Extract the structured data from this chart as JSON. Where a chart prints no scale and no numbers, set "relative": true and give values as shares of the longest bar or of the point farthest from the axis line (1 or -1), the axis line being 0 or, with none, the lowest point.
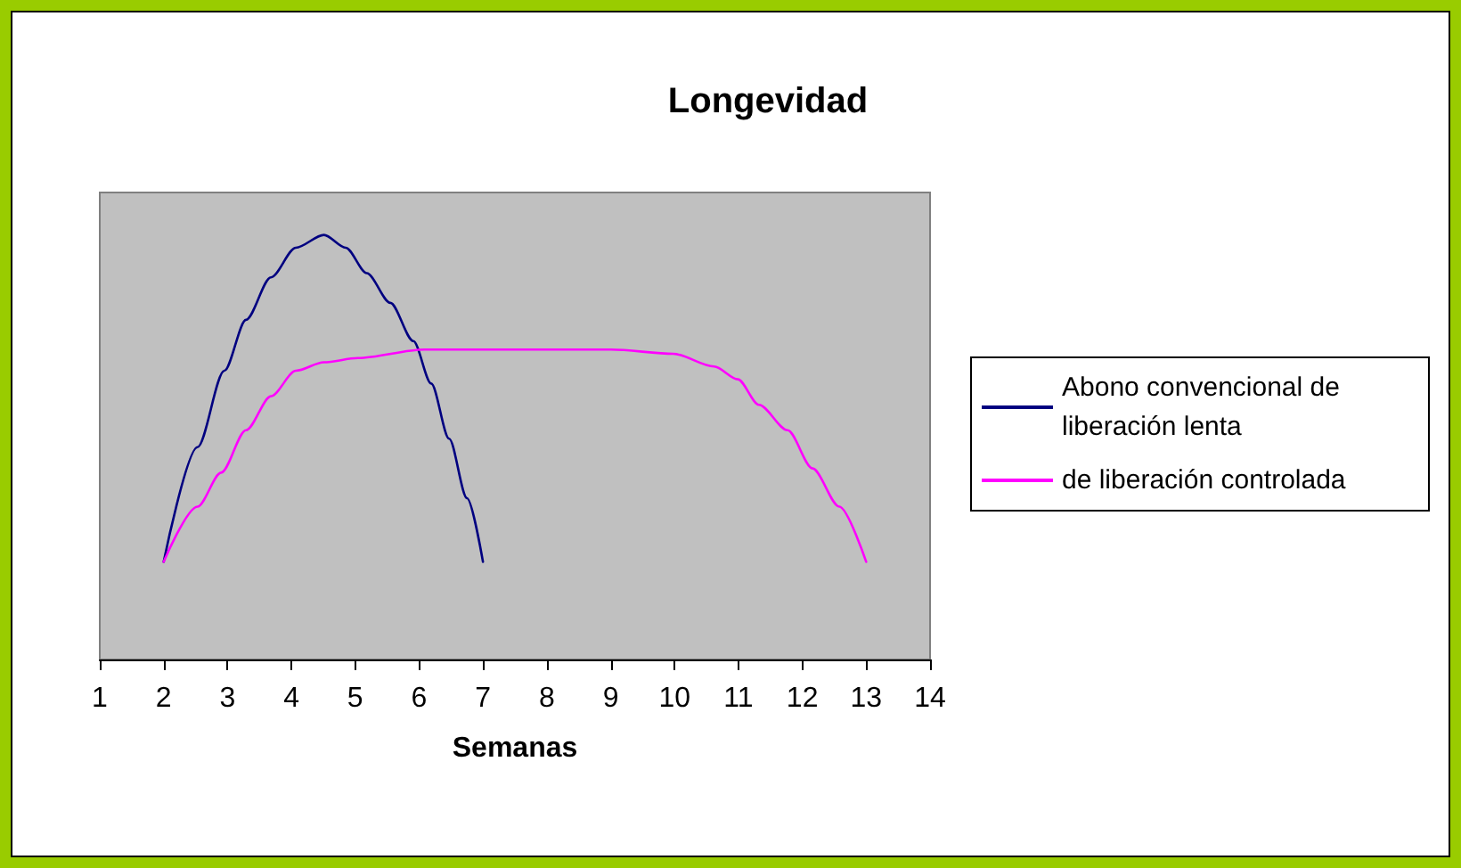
{
  "chart_data": {
    "type": "line",
    "title": "Longevidad",
    "xlabel": "Semanas",
    "relative": true,
    "xlim": [
      1,
      14
    ],
    "xticks": [
      1,
      2,
      3,
      4,
      5,
      6,
      7,
      8,
      9,
      10,
      11,
      12,
      13,
      14
    ],
    "grid": false,
    "legend": "right",
    "marker": "none",
    "line_style": "solid",
    "series": [
      {
        "name": "Abono convencional de liberación lenta",
        "color": "#000080",
        "x": [
          2,
          2.53,
          2.95,
          3.29,
          3.68,
          4.07,
          4.51,
          4.85,
          5.18,
          5.55,
          5.91,
          6.19,
          6.47,
          6.75,
          7
        ],
        "values": [
          0.23,
          0.5,
          0.68,
          0.8,
          0.9,
          0.97,
          1,
          0.97,
          0.91,
          0.84,
          0.75,
          0.65,
          0.52,
          0.38,
          0.23
        ]
      },
      {
        "name": "de liberación controlada",
        "color": "#ff00ff",
        "x": [
          2,
          2.53,
          2.9,
          3.29,
          3.68,
          4.07,
          4.51,
          5.04,
          6.08,
          9.01,
          9.98,
          10.62,
          10.99,
          11.32,
          11.77,
          12.16,
          12.58,
          13
        ],
        "values": [
          0.23,
          0.36,
          0.44,
          0.54,
          0.62,
          0.68,
          0.7,
          0.71,
          0.73,
          0.73,
          0.72,
          0.69,
          0.66,
          0.6,
          0.54,
          0.45,
          0.36,
          0.23
        ]
      }
    ]
  }
}
